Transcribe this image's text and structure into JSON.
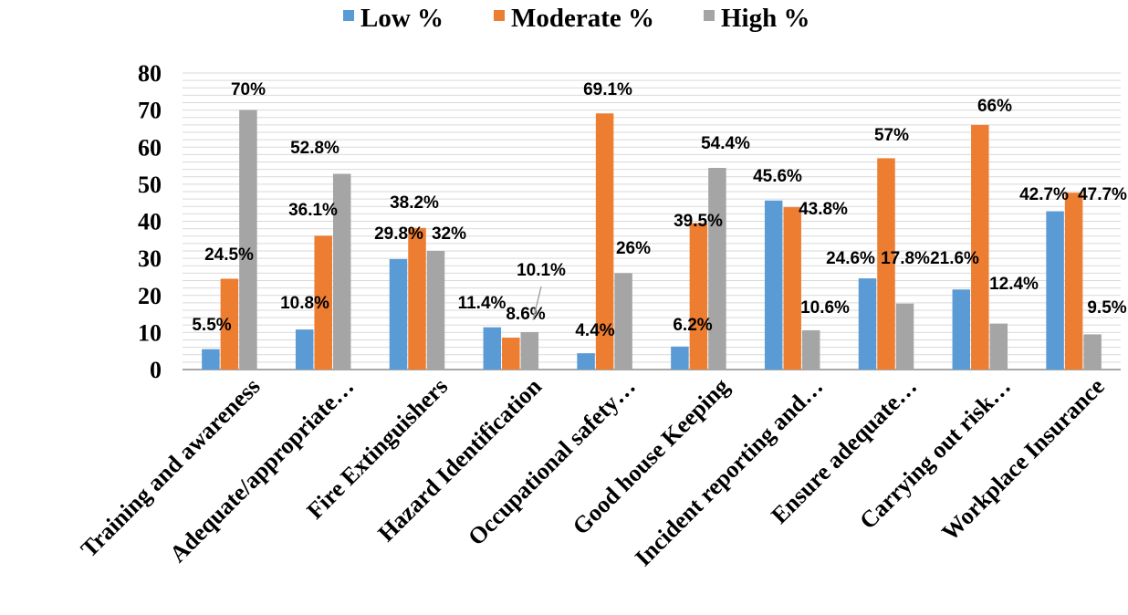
{
  "chart_data": {
    "type": "bar",
    "categories": [
      "Training and awareness",
      "Adequate/appropriate…",
      "Fire Extinguishers",
      "Hazard Identification",
      "Occupational safety…",
      "Good house Keeping",
      "Incident reporting and…",
      "Ensure adequate…",
      "Carrying out risk…",
      "Workplace Insurance"
    ],
    "series": [
      {
        "name": "Low %",
        "color": "#5B9BD5",
        "values": [
          5.5,
          10.8,
          29.8,
          11.4,
          4.4,
          6.2,
          45.6,
          24.6,
          21.6,
          42.7
        ],
        "labels": [
          "5.5%",
          "10.8%",
          "29.8%",
          "11.4%",
          "4.4%",
          "6.2%",
          "45.6%",
          "24.6%",
          "21.6%",
          "42.7%"
        ]
      },
      {
        "name": "Moderate  %",
        "color": "#ED7D31",
        "values": [
          24.5,
          36.1,
          38.2,
          8.6,
          69.1,
          39.5,
          43.8,
          57,
          66,
          47.7
        ],
        "labels": [
          "24.5%",
          "36.1%",
          "38.2%",
          "8.6%",
          "69.1%",
          "39.5%",
          "43.8%",
          "57%",
          "66%",
          "47.7%"
        ]
      },
      {
        "name": "High %",
        "color": "#A5A5A5",
        "values": [
          70,
          52.8,
          32,
          10.1,
          26,
          54.4,
          10.6,
          17.8,
          12.4,
          9.5
        ],
        "labels": [
          "70%",
          "52.8%",
          "32%",
          "10.1%",
          "26%",
          "54.4%",
          "10.6%",
          "17.8%",
          "12.4%",
          "9.5%"
        ]
      }
    ],
    "ylim": [
      0,
      80
    ],
    "yticks": [
      0,
      10,
      20,
      30,
      40,
      50,
      60,
      70,
      80
    ],
    "grid": true,
    "legend_position": "top"
  }
}
